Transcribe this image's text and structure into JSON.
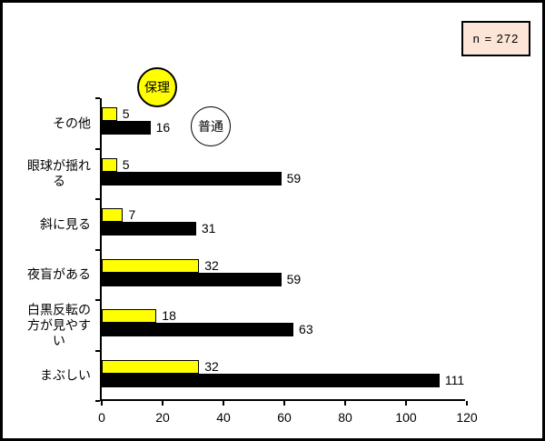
{
  "annotation": {
    "sample_size_label": "n = 272"
  },
  "legend": {
    "items": [
      {
        "label": "保理",
        "color": "#ffff00"
      },
      {
        "label": "普通",
        "color": "#000000"
      }
    ]
  },
  "chart_data": {
    "type": "bar",
    "orientation": "horizontal",
    "title": "",
    "xlabel": "",
    "ylabel": "",
    "categories": [
      "その他",
      "眼球が揺れ\nる",
      "斜に見る",
      "夜盲がある",
      "白黒反転の\n方が見やす\nい",
      "まぶしい"
    ],
    "series": [
      {
        "name": "保理",
        "color": "#ffff00",
        "values": [
          5,
          5,
          7,
          32,
          18,
          32
        ]
      },
      {
        "name": "普通",
        "color": "#000000",
        "values": [
          16,
          59,
          31,
          59,
          63,
          111
        ]
      }
    ],
    "xlim": [
      0,
      120
    ],
    "x_ticks": [
      0,
      20,
      40,
      60,
      80,
      100,
      120
    ],
    "grid": false,
    "legend_position": "floating-circles-top-left",
    "annotation": "n = 272"
  },
  "colors": {
    "series1": "#ffff00",
    "series2": "#000000",
    "annotation_box_bg": "#fce4d6",
    "border": "#000000",
    "background": "#ffffff"
  }
}
